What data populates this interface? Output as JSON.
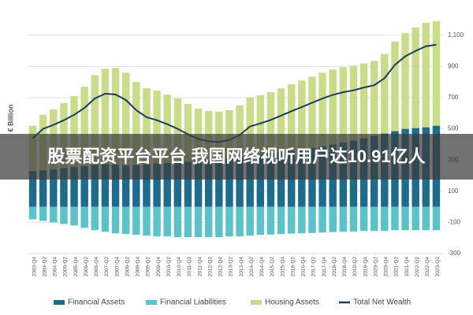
{
  "chart_data": {
    "type": "stacked-bar-line",
    "y_label": "€ Billion",
    "banner": "股票配资平台平台 我国网络视听用户达10.91亿人",
    "categories": [
      "2003-Q4",
      "2004-Q2",
      "2004-Q4",
      "2005-Q2",
      "2005-Q4",
      "2006-Q2",
      "2006-Q4",
      "2007-Q2",
      "2007-Q4",
      "2008-Q2",
      "2008-Q4",
      "2009-Q2",
      "2009-Q4",
      "2010-Q2",
      "2010-Q4",
      "2011-Q2",
      "2011-Q4",
      "2012-Q2",
      "2012-Q4",
      "2013-Q2",
      "2013-Q4",
      "2014-Q2",
      "2014-Q4",
      "2015-Q2",
      "2015-Q4",
      "2016-Q2",
      "2016-Q4",
      "2017-Q2",
      "2017-Q4",
      "2018-Q2",
      "2018-Q4",
      "2019-Q2",
      "2019-Q4",
      "2020-Q2",
      "2020-Q4",
      "2021-Q2",
      "2021-Q4",
      "2022-Q2",
      "2022-Q4",
      "2023-Q2"
    ],
    "series": [
      {
        "name": "Financial Assets",
        "color": "#1f6b8e",
        "kind": "bar",
        "values": [
          230,
          235,
          240,
          248,
          255,
          262,
          268,
          272,
          270,
          265,
          268,
          272,
          278,
          282,
          286,
          290,
          295,
          300,
          305,
          312,
          320,
          328,
          336,
          344,
          352,
          360,
          368,
          378,
          388,
          400,
          412,
          425,
          440,
          455,
          470,
          485,
          500,
          505,
          510,
          520
        ]
      },
      {
        "name": "Financial Liabilities",
        "color": "#5bc2c7",
        "kind": "bar",
        "values": [
          -80,
          -90,
          -100,
          -110,
          -120,
          -135,
          -150,
          -160,
          -170,
          -175,
          -180,
          -185,
          -190,
          -190,
          -195,
          -195,
          -195,
          -195,
          -195,
          -190,
          -190,
          -185,
          -180,
          -178,
          -175,
          -172,
          -170,
          -168,
          -165,
          -162,
          -160,
          -158,
          -155,
          -155,
          -155,
          -150,
          -150,
          -150,
          -150,
          -150
        ]
      },
      {
        "name": "Housing Assets",
        "color": "#c9dc8a",
        "kind": "bar",
        "values": [
          290,
          355,
          385,
          417,
          455,
          508,
          577,
          613,
          620,
          595,
          532,
          488,
          467,
          438,
          409,
          370,
          335,
          315,
          305,
          308,
          330,
          372,
          379,
          391,
          408,
          425,
          442,
          457,
          472,
          480,
          483,
          480,
          480,
          480,
          510,
          575,
          615,
          645,
          670,
          670
        ]
      },
      {
        "name": "Total Net Wealth",
        "color": "#1a3d5c",
        "kind": "line",
        "values": [
          440,
          500,
          525,
          555,
          590,
          635,
          695,
          725,
          720,
          685,
          620,
          575,
          555,
          530,
          500,
          465,
          435,
          420,
          415,
          430,
          460,
          515,
          535,
          557,
          585,
          613,
          640,
          667,
          695,
          718,
          735,
          747,
          765,
          780,
          825,
          910,
          965,
          1000,
          1030,
          1040
        ]
      }
    ],
    "ylim": [
      -300,
      1200
    ],
    "yticks": [
      {
        "value": 1100,
        "label": "1,100"
      },
      900,
      700,
      500,
      300,
      100,
      -100,
      -300
    ],
    "grid": true
  }
}
